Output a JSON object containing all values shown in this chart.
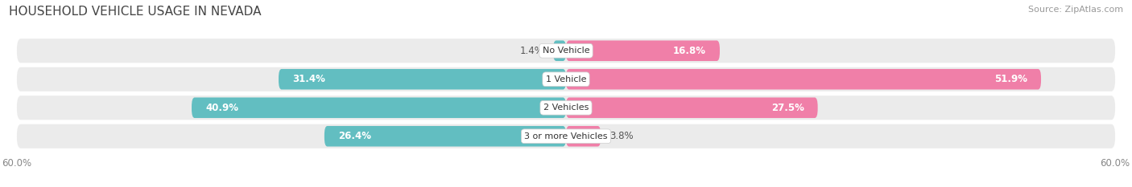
{
  "title": "HOUSEHOLD VEHICLE USAGE IN NEVADA",
  "source": "Source: ZipAtlas.com",
  "categories": [
    "No Vehicle",
    "1 Vehicle",
    "2 Vehicles",
    "3 or more Vehicles"
  ],
  "owner_values": [
    1.4,
    31.4,
    40.9,
    26.4
  ],
  "renter_values": [
    16.8,
    51.9,
    27.5,
    3.8
  ],
  "owner_color": "#62bec1",
  "renter_color": "#f07fa8",
  "bar_bg_color": "#ebebeb",
  "xlim": 60.0,
  "bar_height": 0.72,
  "bg_bar_height": 0.85,
  "figsize": [
    14.06,
    2.33
  ],
  "dpi": 100,
  "title_fontsize": 11,
  "source_fontsize": 8,
  "bar_label_fontsize": 8.5,
  "cat_label_fontsize": 8,
  "axis_label_fontsize": 8.5,
  "legend_fontsize": 8.5,
  "owner_label_threshold": 8,
  "renter_label_threshold": 8
}
